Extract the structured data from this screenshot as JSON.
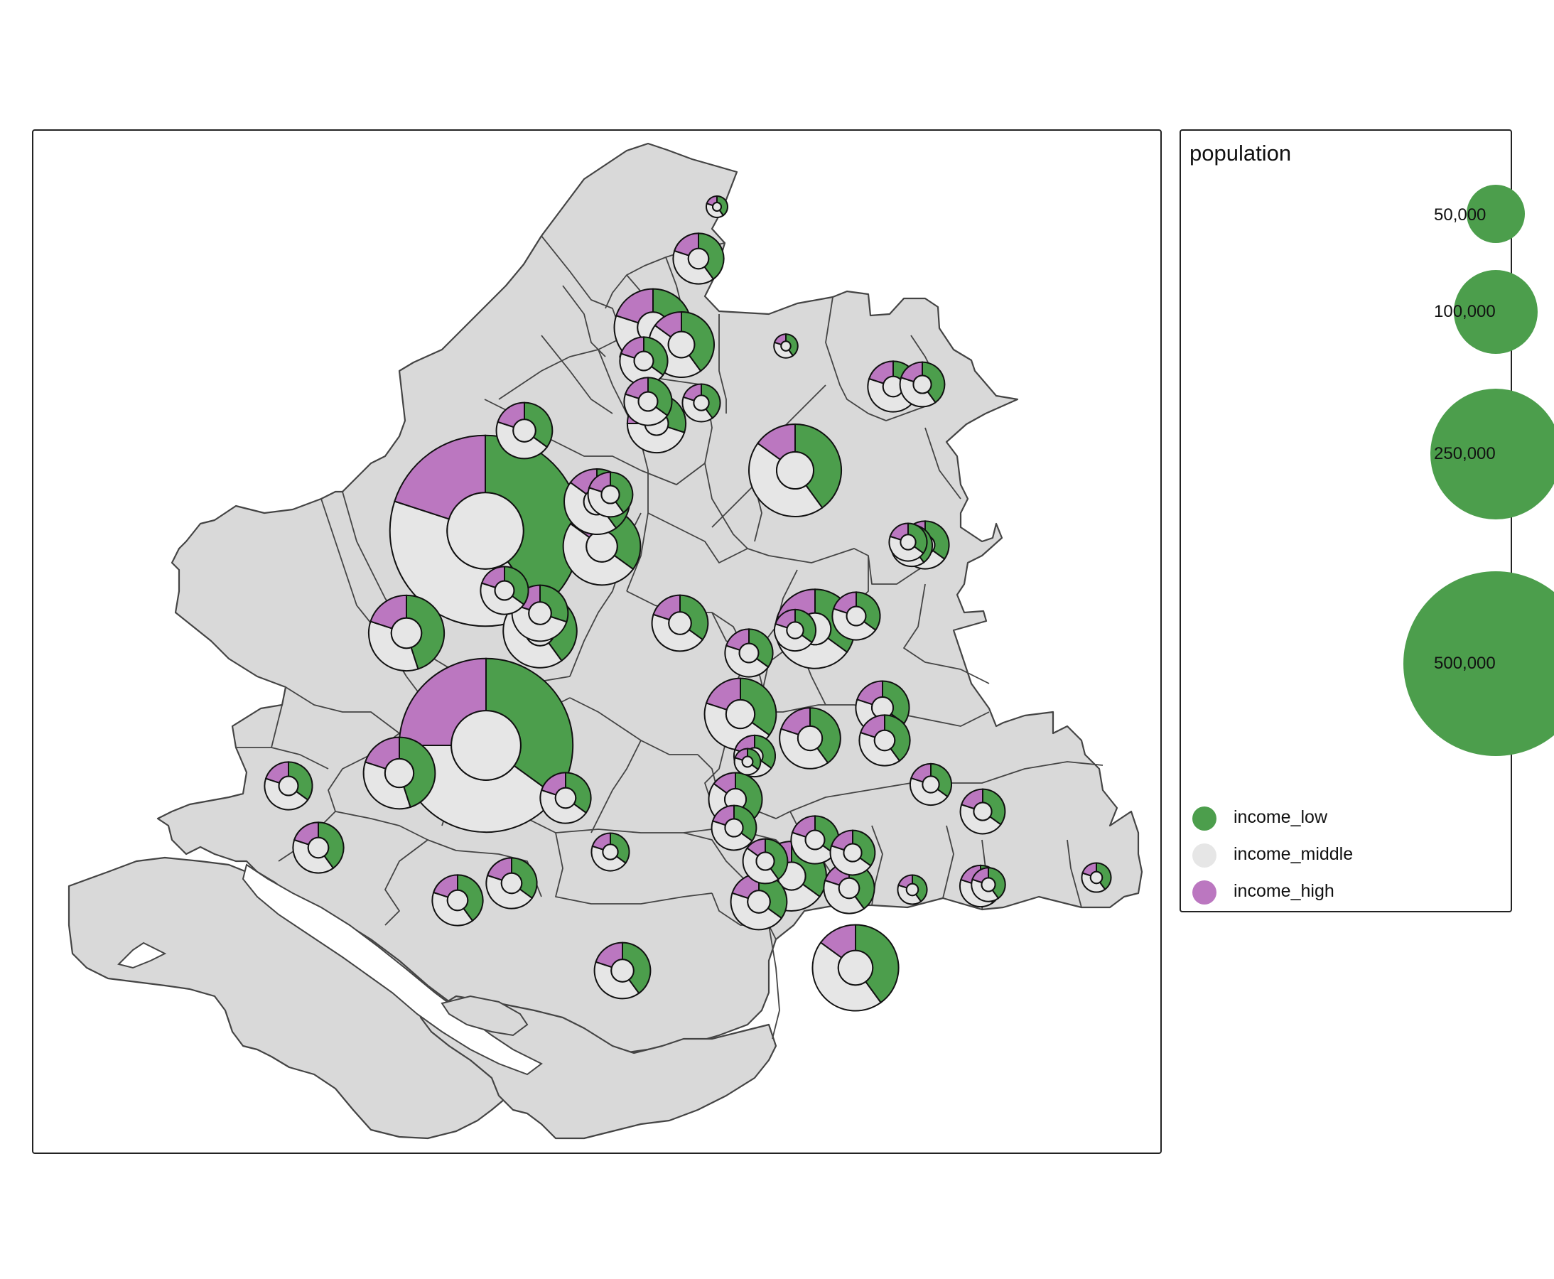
{
  "colors": {
    "income_low": "#4c9e4c",
    "income_middle": "#e6e6e6",
    "income_high": "#bb77c0",
    "region_fill": "#d9d9d9",
    "region_stroke": "#444444"
  },
  "legend": {
    "title": "population",
    "sizes": [
      {
        "label": "50,000",
        "value": 50000
      },
      {
        "label": "100,000",
        "value": 100000
      },
      {
        "label": "250,000",
        "value": 250000
      },
      {
        "label": "500,000",
        "value": 500000
      }
    ],
    "categories": [
      {
        "key": "income_low",
        "label": "income_low"
      },
      {
        "key": "income_middle",
        "label": "income_middle"
      },
      {
        "key": "income_high",
        "label": "income_high"
      }
    ]
  },
  "chart_data": {
    "type": "donut-map",
    "size_variable": "population",
    "categories": [
      "income_low",
      "income_middle",
      "income_high"
    ],
    "regions_symbols": [
      {
        "population": 640000,
        "shares": [
          0.4,
          0.4,
          0.2
        ]
      },
      {
        "population": 530000,
        "shares": [
          0.35,
          0.4,
          0.25
        ]
      },
      {
        "population": 90000,
        "shares": [
          0.35,
          0.45,
          0.2
        ]
      },
      {
        "population": 100000,
        "shares": [
          0.45,
          0.35,
          0.2
        ]
      },
      {
        "population": 95000,
        "shares": [
          0.4,
          0.45,
          0.15
        ]
      },
      {
        "population": 150000,
        "shares": [
          0.4,
          0.45,
          0.15
        ]
      },
      {
        "population": 105000,
        "shares": [
          0.35,
          0.5,
          0.15
        ]
      },
      {
        "population": 105000,
        "shares": [
          0.35,
          0.45,
          0.2
        ]
      },
      {
        "population": 55000,
        "shares": [
          0.3,
          0.5,
          0.2
        ]
      },
      {
        "population": 60000,
        "shares": [
          0.3,
          0.45,
          0.25
        ]
      },
      {
        "population": 55000,
        "shares": [
          0.35,
          0.45,
          0.2
        ]
      },
      {
        "population": 75000,
        "shares": [
          0.4,
          0.45,
          0.15
        ]
      },
      {
        "population": 75000,
        "shares": [
          0.4,
          0.45,
          0.15
        ]
      },
      {
        "population": 90000,
        "shares": [
          0.45,
          0.35,
          0.2
        ]
      },
      {
        "population": 50000,
        "shares": [
          0.45,
          0.4,
          0.15
        ]
      },
      {
        "population": 130000,
        "shares": [
          0.4,
          0.45,
          0.15
        ]
      },
      {
        "population": 45000,
        "shares": [
          0.35,
          0.45,
          0.2
        ]
      },
      {
        "population": 45000,
        "shares": [
          0.35,
          0.45,
          0.2
        ]
      },
      {
        "population": 45000,
        "shares": [
          0.4,
          0.4,
          0.2
        ]
      },
      {
        "population": 35000,
        "shares": [
          0.4,
          0.45,
          0.15
        ]
      },
      {
        "population": 30000,
        "shares": [
          0.4,
          0.4,
          0.2
        ]
      },
      {
        "population": 25000,
        "shares": [
          0.35,
          0.45,
          0.2
        ]
      },
      {
        "population": 12000,
        "shares": [
          0.35,
          0.45,
          0.2
        ]
      },
      {
        "population": 8000,
        "shares": [
          0.4,
          0.4,
          0.2
        ]
      },
      {
        "population": 45000,
        "shares": [
          0.4,
          0.4,
          0.2
        ]
      },
      {
        "population": 40000,
        "shares": [
          0.35,
          0.45,
          0.2
        ]
      },
      {
        "population": 45000,
        "shares": [
          0.4,
          0.4,
          0.2
        ]
      },
      {
        "population": 55000,
        "shares": [
          0.35,
          0.45,
          0.2
        ]
      },
      {
        "population": 40000,
        "shares": [
          0.35,
          0.45,
          0.2
        ]
      },
      {
        "population": 65000,
        "shares": [
          0.4,
          0.4,
          0.2
        ]
      },
      {
        "population": 45000,
        "shares": [
          0.35,
          0.45,
          0.2
        ]
      },
      {
        "population": 55000,
        "shares": [
          0.4,
          0.4,
          0.2
        ]
      },
      {
        "population": 35000,
        "shares": [
          0.35,
          0.45,
          0.2
        ]
      },
      {
        "population": 55000,
        "shares": [
          0.35,
          0.45,
          0.2
        ]
      },
      {
        "population": 20000,
        "shares": [
          0.4,
          0.4,
          0.2
        ]
      },
      {
        "population": 15000,
        "shares": [
          0.4,
          0.4,
          0.2
        ]
      },
      {
        "population": 45000,
        "shares": [
          0.4,
          0.4,
          0.2
        ]
      },
      {
        "population": 35000,
        "shares": [
          0.35,
          0.45,
          0.2
        ]
      },
      {
        "population": 40000,
        "shares": [
          0.35,
          0.45,
          0.2
        ]
      },
      {
        "population": 45000,
        "shares": [
          0.4,
          0.4,
          0.2
        ]
      },
      {
        "population": 30000,
        "shares": [
          0.35,
          0.45,
          0.2
        ]
      },
      {
        "population": 30000,
        "shares": [
          0.35,
          0.45,
          0.2
        ]
      },
      {
        "population": 25000,
        "shares": [
          0.4,
          0.4,
          0.2
        ]
      },
      {
        "population": 10000,
        "shares": [
          0.4,
          0.4,
          0.2
        ]
      },
      {
        "population": 35000,
        "shares": [
          0.4,
          0.4,
          0.2
        ]
      },
      {
        "population": 25000,
        "shares": [
          0.35,
          0.45,
          0.2
        ]
      },
      {
        "population": 15000,
        "shares": [
          0.4,
          0.4,
          0.2
        ]
      },
      {
        "population": 85000,
        "shares": [
          0.35,
          0.45,
          0.2
        ]
      },
      {
        "population": 110000,
        "shares": [
          0.35,
          0.45,
          0.2
        ]
      },
      {
        "population": 40000,
        "shares": [
          0.35,
          0.45,
          0.2
        ]
      },
      {
        "population": 40000,
        "shares": [
          0.35,
          0.45,
          0.2
        ]
      },
      {
        "population": 30000,
        "shares": [
          0.35,
          0.45,
          0.2
        ]
      },
      {
        "population": 35000,
        "shares": [
          0.4,
          0.4,
          0.2
        ]
      },
      {
        "population": 40000,
        "shares": [
          0.35,
          0.45,
          0.2
        ]
      },
      {
        "population": 40000,
        "shares": [
          0.35,
          0.45,
          0.2
        ]
      },
      {
        "population": 30000,
        "shares": [
          0.4,
          0.4,
          0.2
        ]
      },
      {
        "population": 35000,
        "shares": [
          0.35,
          0.45,
          0.2
        ]
      },
      {
        "population": 50000,
        "shares": [
          0.35,
          0.45,
          0.2
        ]
      },
      {
        "population": 40000,
        "shares": [
          0.35,
          0.45,
          0.2
        ]
      }
    ]
  }
}
